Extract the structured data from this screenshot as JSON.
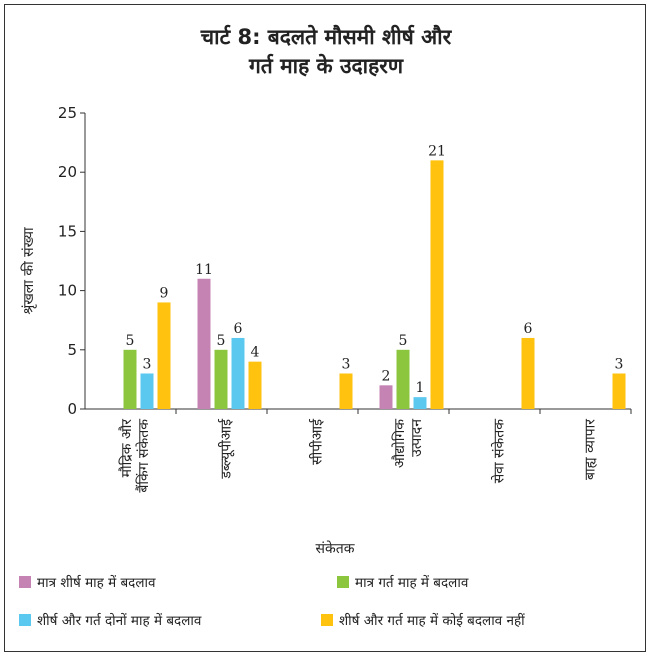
{
  "chart_data": {
    "type": "bar",
    "title_line1": "चार्ट 8: बदलते मौसमी शीर्ष और",
    "title_line2": "गर्त माह के उदाहरण",
    "xlabel": "संकेतक",
    "ylabel": "श्रृंखला की संख्या",
    "ylim": [
      0,
      25
    ],
    "yticks": [
      0,
      5,
      10,
      15,
      20,
      25
    ],
    "categories": [
      [
        "मौद्रिक और",
        "बैंकिंग संकेतक"
      ],
      [
        "डब्ल्यूपीआई"
      ],
      [
        "सीपीआई"
      ],
      [
        "औद्योगिक",
        "उत्पादन"
      ],
      [
        "सेवा संकेतक"
      ],
      [
        "बाह्य व्यापार"
      ]
    ],
    "series": [
      {
        "name": "मात्र शीर्ष माह में बदलाव",
        "color": "#c583b3",
        "values": [
          null,
          11,
          null,
          2,
          null,
          null
        ]
      },
      {
        "name": "मात्र गर्त माह में बदलाव",
        "color": "#8cc63f",
        "values": [
          5,
          5,
          null,
          5,
          null,
          null
        ]
      },
      {
        "name": "शीर्ष और गर्त दोनों माह में बदलाव",
        "color": "#5bc8f0",
        "values": [
          3,
          6,
          null,
          1,
          null,
          null
        ]
      },
      {
        "name": "शीर्ष और गर्त माह में कोई बदलाव नहीं",
        "color": "#ffc20e",
        "values": [
          9,
          4,
          3,
          21,
          6,
          3
        ]
      }
    ],
    "grid": false,
    "legend_position": "bottom"
  }
}
